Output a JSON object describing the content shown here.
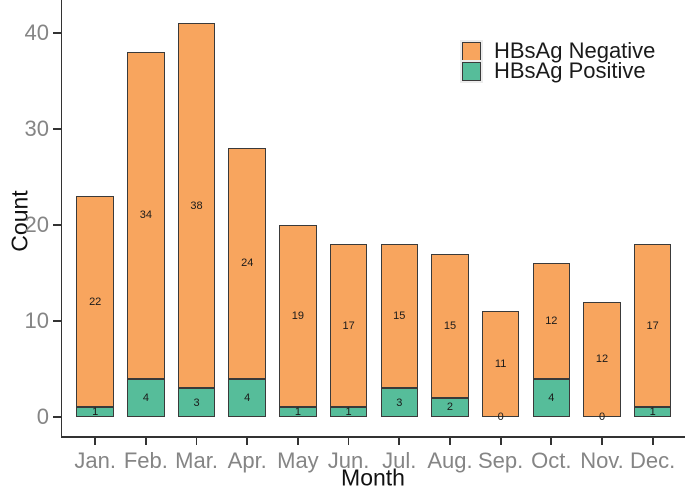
{
  "chart_data": {
    "type": "bar",
    "stacked": true,
    "title": "",
    "xlabel": "Month",
    "ylabel": "Count",
    "categories": [
      "Jan.",
      "Feb.",
      "Mar.",
      "Apr.",
      "May",
      "Jun.",
      "Jul.",
      "Aug.",
      "Sep.",
      "Oct.",
      "Nov.",
      "Dec."
    ],
    "series": [
      {
        "name": "HBsAg Positive",
        "color": "#56BD9A",
        "stack_position": "bottom",
        "values": [
          1,
          4,
          3,
          4,
          1,
          1,
          3,
          2,
          0,
          4,
          0,
          1
        ]
      },
      {
        "name": "HBsAg Negative",
        "color": "#F8A55E",
        "stack_position": "top",
        "values": [
          22,
          34,
          38,
          24,
          19,
          17,
          15,
          15,
          11,
          12,
          12,
          17
        ]
      }
    ],
    "totals": [
      23,
      38,
      41,
      28,
      20,
      18,
      18,
      17,
      11,
      16,
      12,
      18
    ],
    "yticks": [
      0,
      10,
      20,
      30,
      40
    ],
    "ylim": [
      0,
      43
    ],
    "bar_value_labels": true,
    "grid": false,
    "legend_position": "top-right",
    "colors": {
      "bar_border": "#3A3A3A",
      "axis": "#333333",
      "tick_label": "#858585",
      "text": "#1A1A1A"
    }
  },
  "legend": {
    "items": [
      {
        "label": "HBsAg Negative",
        "color": "#F8A55E"
      },
      {
        "label": "HBsAg Positive",
        "color": "#56BD9A"
      }
    ]
  }
}
